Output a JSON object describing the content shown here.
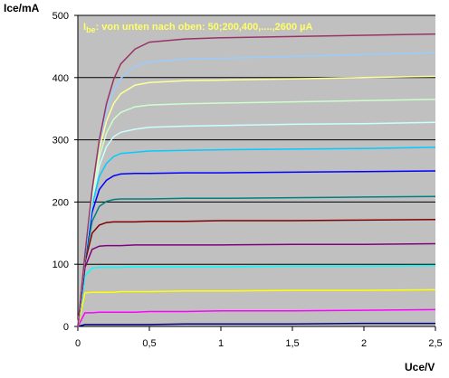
{
  "chart_data": {
    "type": "line",
    "y_label": "Ice/mA",
    "x_label": "Uce/V",
    "annotation": {
      "symbol": "I",
      "subscript": "be",
      "text": ": von unten nach oben: 50;200,400,....,2600 µA"
    },
    "x": [
      0,
      0.05,
      0.1,
      0.15,
      0.2,
      0.25,
      0.3,
      0.4,
      0.5,
      0.75,
      1,
      1.5,
      2,
      2.5
    ],
    "xlim": [
      0,
      2.5
    ],
    "xticks": [
      0,
      {
        "value": 0.5,
        "label": "0,5"
      },
      1,
      {
        "value": 1.5,
        "label": "1,5"
      },
      2,
      {
        "value": 2.5,
        "label": "2,5"
      }
    ],
    "ylim": [
      0,
      500
    ],
    "yticks": [
      0,
      100,
      200,
      300,
      400,
      500
    ],
    "grid": true,
    "background": "#c0c0c0",
    "series": [
      {
        "color": "#000080",
        "values": [
          0,
          3,
          3,
          3,
          3,
          3,
          3,
          3,
          3,
          4,
          4,
          4,
          5,
          5
        ]
      },
      {
        "color": "#ff00ff",
        "values": [
          0,
          22,
          22,
          23,
          23,
          23,
          23,
          23,
          24,
          24,
          25,
          25,
          26,
          27
        ]
      },
      {
        "color": "#ffff00",
        "values": [
          0,
          54,
          55,
          55,
          55,
          55,
          56,
          56,
          56,
          57,
          57,
          58,
          58,
          59
        ]
      },
      {
        "color": "#00ffff",
        "values": [
          0,
          81,
          94,
          95,
          95,
          95,
          95,
          96,
          96,
          96,
          96,
          97,
          97,
          98
        ]
      },
      {
        "color": "#800080",
        "values": [
          0,
          95,
          124,
          129,
          130,
          130,
          130,
          131,
          131,
          131,
          131,
          132,
          132,
          133
        ]
      },
      {
        "color": "#800000",
        "values": [
          0,
          103,
          150,
          163,
          167,
          168,
          168,
          168,
          169,
          169,
          170,
          170,
          171,
          172
        ]
      },
      {
        "color": "#008080",
        "values": [
          0,
          108,
          169,
          193,
          201,
          204,
          205,
          205,
          205,
          206,
          206,
          207,
          208,
          209
        ]
      },
      {
        "color": "#0000ff",
        "values": [
          0,
          111,
          184,
          220,
          235,
          242,
          245,
          246,
          246,
          247,
          247,
          248,
          249,
          250
        ]
      },
      {
        "color": "#00ccff",
        "values": [
          0,
          113,
          195,
          241,
          262,
          273,
          278,
          280,
          282,
          283,
          284,
          285,
          286,
          288
        ]
      },
      {
        "color": "#ccffff",
        "values": [
          0,
          114,
          203,
          258,
          289,
          305,
          312,
          317,
          320,
          322,
          323,
          325,
          326,
          328
        ]
      },
      {
        "color": "#ccffcc",
        "values": [
          0,
          116,
          209,
          272,
          311,
          333,
          344,
          353,
          356,
          358,
          359,
          361,
          363,
          365
        ]
      },
      {
        "color": "#ffff99",
        "values": [
          0,
          116,
          214,
          284,
          330,
          358,
          374,
          388,
          392,
          395,
          396,
          398,
          400,
          402
        ]
      },
      {
        "color": "#99ccff",
        "values": [
          0,
          117,
          218,
          294,
          346,
          379,
          399,
          418,
          425,
          430,
          431,
          434,
          437,
          440
        ]
      },
      {
        "color": "#993366",
        "values": [
          0,
          117,
          220,
          300,
          358,
          397,
          422,
          446,
          457,
          462,
          464,
          466,
          468,
          470
        ]
      }
    ]
  }
}
